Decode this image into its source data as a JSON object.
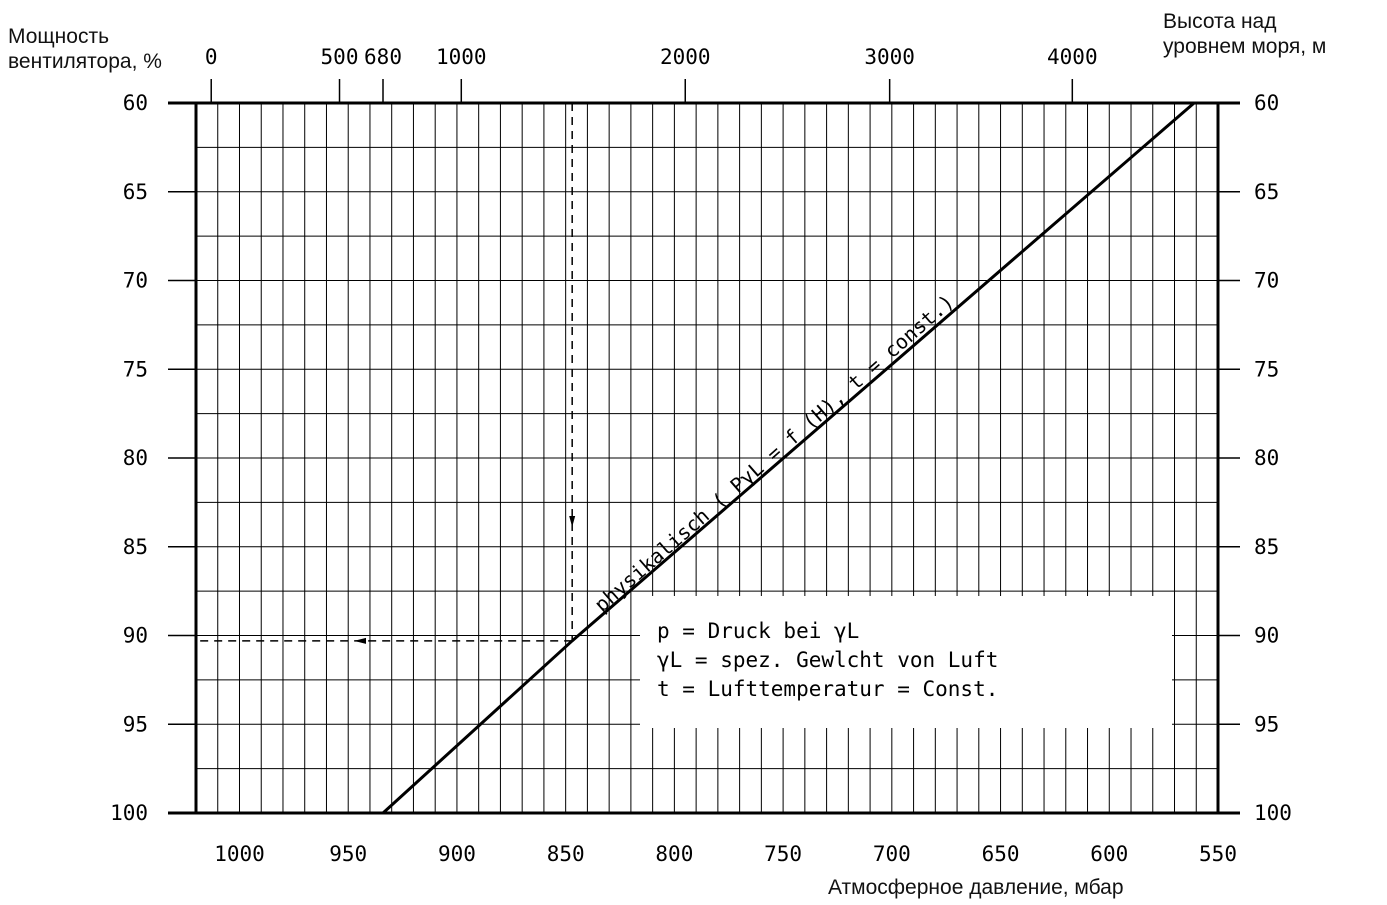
{
  "labels": {
    "y_left_line1": "Мощность",
    "y_left_line2": "вентилятора, %",
    "x_top_line1": "Высота над",
    "x_top_line2": "уровнем моря, м",
    "x_bottom": "Атмосферное давление, мбар"
  },
  "chart_data": {
    "type": "line",
    "title": "",
    "xlabel": "Атмосферное давление, мбар",
    "ylabel": "Мощность вентилятора, %",
    "x_axis_reversed": true,
    "xlim": [
      1020,
      550
    ],
    "ylim": [
      60,
      100
    ],
    "y_axis_inverted": true,
    "grid": true,
    "x_ticks": [
      1000,
      950,
      900,
      850,
      800,
      750,
      700,
      650,
      600,
      550
    ],
    "y_ticks": [
      60,
      65,
      70,
      75,
      80,
      85,
      90,
      95,
      100
    ],
    "top_axis": {
      "label": "Высота над уровнем моря, м",
      "ticks": [
        {
          "label": "0",
          "pressure": 1013
        },
        {
          "label": "500",
          "pressure": 954
        },
        {
          "label": "680",
          "pressure": 934
        },
        {
          "label": "1000",
          "pressure": 898
        },
        {
          "label": "2000",
          "pressure": 795
        },
        {
          "label": "3000",
          "pressure": 701
        },
        {
          "label": "4000",
          "pressure": 617
        }
      ]
    },
    "series": [
      {
        "name": "physikalisch ( PγL = f (H), t = const.)",
        "style": "solid",
        "points": [
          [
            934,
            100
          ],
          [
            847,
            90.3
          ],
          [
            561,
            60
          ]
        ]
      }
    ],
    "guides": [
      {
        "style": "dashed",
        "points": [
          [
            847,
            60
          ],
          [
            847,
            90.3
          ]
        ],
        "arrow": "down"
      },
      {
        "style": "dashed",
        "points": [
          [
            847,
            90.3
          ],
          [
            1020,
            90.3
          ]
        ],
        "arrow": "left"
      }
    ],
    "legend": {
      "placement": "lower-right",
      "lines": [
        "p = Druck bei γL",
        "γL = spez. Gewlcht von Luft",
        "t = Lufttemperatur = Const."
      ]
    },
    "colors": {
      "line": "#000000",
      "grid": "#000000",
      "background": "#ffffff"
    }
  }
}
